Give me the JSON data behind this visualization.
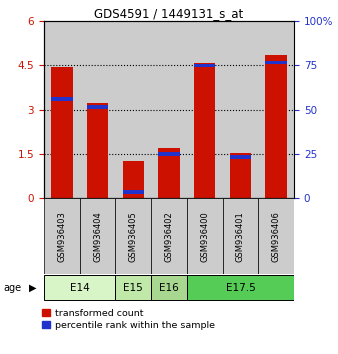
{
  "title": "GDS4591 / 1449131_s_at",
  "samples": [
    "GSM936403",
    "GSM936404",
    "GSM936405",
    "GSM936402",
    "GSM936400",
    "GSM936401",
    "GSM936406"
  ],
  "red_values": [
    4.45,
    3.22,
    1.25,
    1.72,
    4.6,
    1.55,
    4.85
  ],
  "blue_values": [
    3.35,
    3.1,
    0.2,
    1.5,
    4.5,
    1.4,
    4.6
  ],
  "blue_percentiles": [
    55.8,
    51.6,
    3.3,
    25.0,
    75.0,
    23.3,
    76.6
  ],
  "ylim_left": [
    0,
    6
  ],
  "ylim_right": [
    0,
    100
  ],
  "yticks_left": [
    0,
    1.5,
    3,
    4.5,
    6
  ],
  "yticks_left_labels": [
    "0",
    "1.5",
    "3",
    "4.5",
    "6"
  ],
  "yticks_right": [
    0,
    25,
    50,
    75,
    100
  ],
  "yticks_right_labels": [
    "0",
    "25",
    "50",
    "75",
    "100%"
  ],
  "age_groups": [
    {
      "label": "E14",
      "samples": [
        "GSM936403",
        "GSM936404"
      ],
      "color": "#d8f5c8"
    },
    {
      "label": "E15",
      "samples": [
        "GSM936405"
      ],
      "color": "#c0e8a8"
    },
    {
      "label": "E16",
      "samples": [
        "GSM936402"
      ],
      "color": "#a8d890"
    },
    {
      "label": "E17.5",
      "samples": [
        "GSM936400",
        "GSM936401",
        "GSM936406"
      ],
      "color": "#55cc55"
    }
  ],
  "bar_width": 0.6,
  "red_color": "#cc1100",
  "blue_color": "#2233cc",
  "bg_color": "#cccccc",
  "legend_red": "transformed count",
  "legend_blue": "percentile rank within the sample",
  "age_label": "age"
}
